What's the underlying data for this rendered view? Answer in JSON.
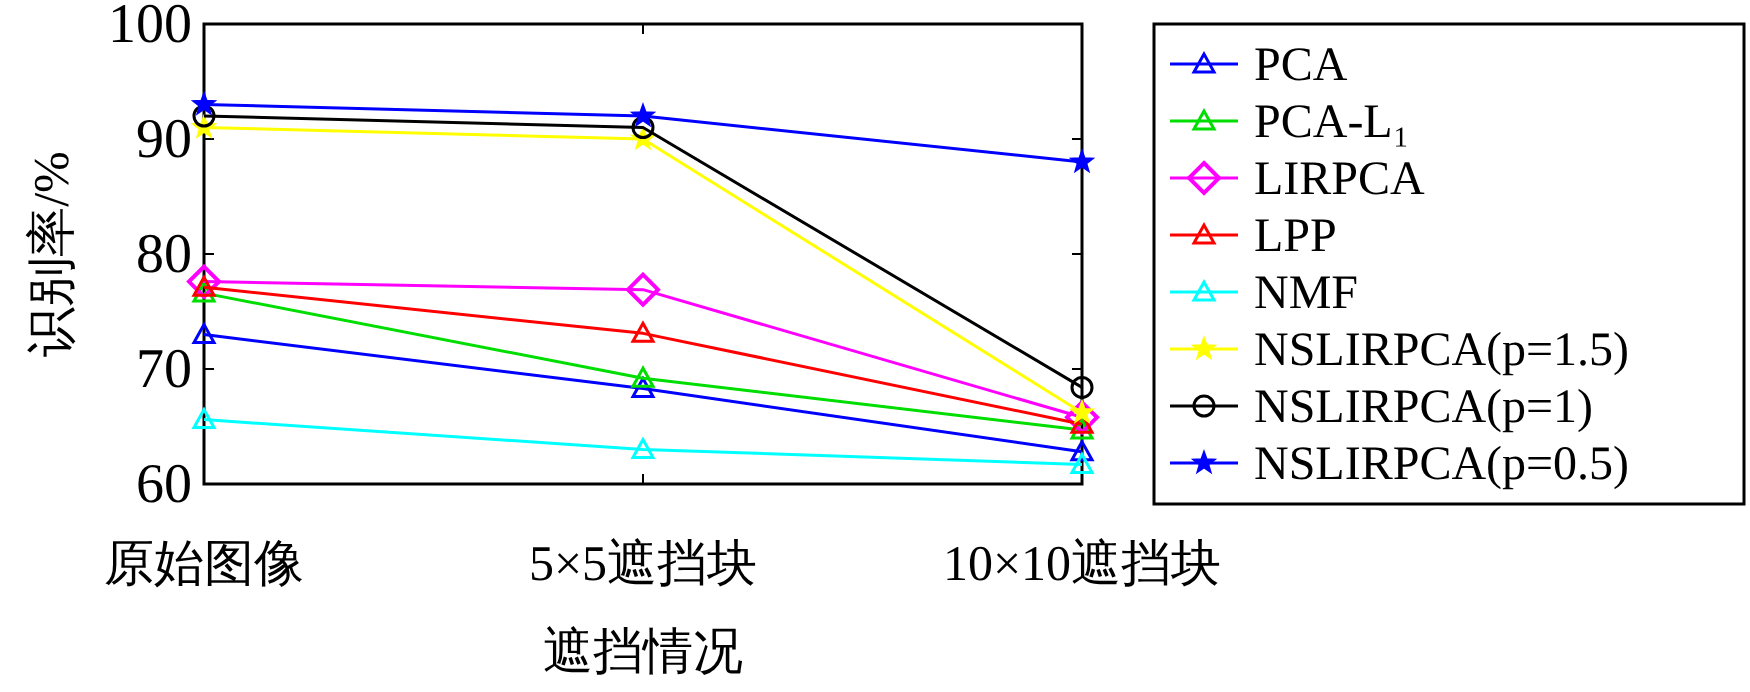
{
  "chart_data": {
    "type": "line",
    "xlabel": "遮挡情况",
    "ylabel": "识别率/%",
    "categories": [
      "原始图像",
      "5×5遮挡块",
      "10×10遮挡块"
    ],
    "ylim": [
      60,
      100
    ],
    "yticks": [
      60,
      70,
      80,
      90,
      100
    ],
    "grid": false,
    "legend": "right",
    "series": [
      {
        "name": "PCA",
        "color": "#0000ff",
        "marker": "triangle",
        "values": [
          73,
          68.3,
          62.8
        ]
      },
      {
        "name": "PCA-L₁",
        "color": "#00dd00",
        "marker": "triangle",
        "values": [
          76.6,
          69.2,
          64.7
        ]
      },
      {
        "name": "LIRPCA",
        "color": "#ff00ff",
        "marker": "diamond",
        "values": [
          77.6,
          76.9,
          65.8
        ]
      },
      {
        "name": "LPP",
        "color": "#ff0000",
        "marker": "triangle",
        "values": [
          77.1,
          73.1,
          65.2
        ]
      },
      {
        "name": "NMF",
        "color": "#00ffff",
        "marker": "triangle",
        "values": [
          65.6,
          63,
          61.7
        ]
      },
      {
        "name": "NSLIRPCA(p=1.5)",
        "color": "#ffff00",
        "marker": "star",
        "values": [
          91,
          90,
          66.2
        ]
      },
      {
        "name": "NSLIRPCA(p=1)",
        "color": "#000000",
        "marker": "circle",
        "values": [
          92,
          91,
          68.4
        ]
      },
      {
        "name": "NSLIRPCA(p=0.5)",
        "color": "#0000ff",
        "marker": "star",
        "values": [
          93,
          92,
          88
        ]
      }
    ]
  }
}
